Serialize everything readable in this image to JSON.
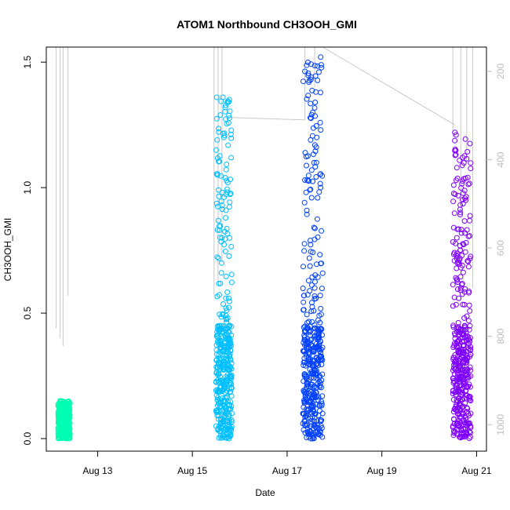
{
  "chart_data": {
    "type": "scatter",
    "title": "ATOM1 Northbound CH3OOH_GMI",
    "xlabel": "Date",
    "ylabel": "CH3OOH_GMI",
    "x_ticks": [
      "Aug 13",
      "Aug 15",
      "Aug 17",
      "Aug 19",
      "Aug 21"
    ],
    "y_ticks": [
      "0.0",
      "0.5",
      "1.0",
      "1.5"
    ],
    "y_right_ticks": [
      "200",
      "400",
      "600",
      "800",
      "1000"
    ],
    "xlim": [
      "2016-08-11 22:00",
      "2016-08-21 05:00"
    ],
    "ylim": [
      -0.05,
      1.56
    ],
    "y_right_lim": [
      1060,
      145
    ],
    "y_right_axis": "pressure (hPa), inverted",
    "grid": false,
    "legend": "none",
    "series": [
      {
        "flight": "Aug 12",
        "color": "#00FFB2",
        "points": [
          [
            "2016-08-12 04:00",
            0.02
          ],
          [
            "2016-08-12 05:00",
            0.15
          ],
          [
            "2016-08-12 06:00",
            0.08
          ],
          [
            "2016-08-12 07:00",
            0.12
          ],
          [
            "2016-08-12 08:00",
            0.03
          ],
          [
            "2016-08-12 09:00",
            0.1
          ],
          [
            "2016-08-12 10:00",
            0.14
          ]
        ]
      },
      {
        "flight": "Aug 15",
        "color": "#00BFFF",
        "points": [
          [
            "2016-08-15 12:00",
            0.05
          ],
          [
            "2016-08-15 13:00",
            0.15
          ],
          [
            "2016-08-15 14:00",
            0.45
          ],
          [
            "2016-08-15 15:00",
            0.8
          ],
          [
            "2016-08-15 15:30",
            1.36
          ],
          [
            "2016-08-15 16:00",
            1.2
          ],
          [
            "2016-08-15 17:00",
            0.4
          ],
          [
            "2016-08-15 18:00",
            1.02
          ],
          [
            "2016-08-15 19:00",
            0.25
          ],
          [
            "2016-08-15 20:00",
            0.1
          ]
        ]
      },
      {
        "flight": "Aug 17",
        "color": "#0040FF",
        "points": [
          [
            "2016-08-17 08:00",
            0.1
          ],
          [
            "2016-08-17 09:00",
            1.03
          ],
          [
            "2016-08-17 10:00",
            0.3
          ],
          [
            "2016-08-17 11:00",
            1.42
          ],
          [
            "2016-08-17 12:00",
            0.05
          ],
          [
            "2016-08-17 13:00",
            1.3
          ],
          [
            "2016-08-17 14:00",
            0.6
          ],
          [
            "2016-08-17 15:00",
            1.2
          ],
          [
            "2016-08-17 16:00",
            0.02
          ],
          [
            "2016-08-17 17:00",
            1.52
          ],
          [
            "2016-08-17 18:00",
            0.1
          ]
        ]
      },
      {
        "flight": "Aug 20",
        "color": "#7F00FF",
        "points": [
          [
            "2016-08-20 12:00",
            0.05
          ],
          [
            "2016-08-20 13:00",
            1.22
          ],
          [
            "2016-08-20 14:00",
            0.8
          ],
          [
            "2016-08-20 15:00",
            0.3
          ],
          [
            "2016-08-20 16:00",
            0.6
          ],
          [
            "2016-08-20 17:00",
            0.1
          ],
          [
            "2016-08-20 18:00",
            0.45
          ],
          [
            "2016-08-20 19:00",
            0.02
          ],
          [
            "2016-08-20 20:00",
            0.47
          ],
          [
            "2016-08-20 21:00",
            0.1
          ]
        ]
      }
    ],
    "pressure_line_color": "#c8c8c8"
  }
}
